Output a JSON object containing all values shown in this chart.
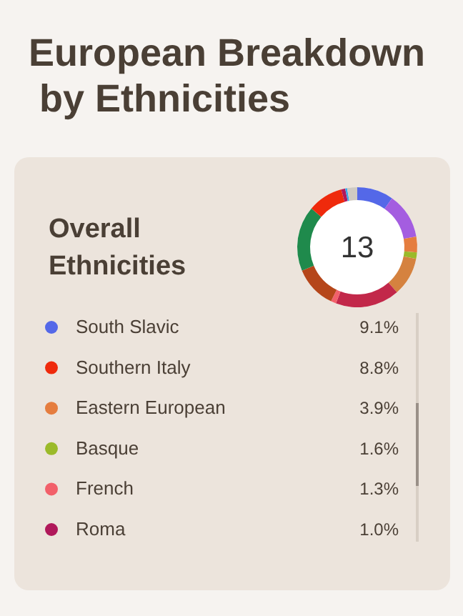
{
  "chart_data": {
    "type": "donut",
    "title": "European Breakdown by Ethnicities",
    "subtitle": "Overall Ethnicities",
    "annotations": [
      "13"
    ],
    "categories": [
      "South Slavic",
      null,
      "Eastern European",
      "Basque",
      null,
      null,
      "French",
      null,
      null,
      "Southern Italy",
      "Roma",
      null,
      null
    ],
    "values": [
      9.1,
      11.4,
      3.9,
      1.6,
      9.6,
      16,
      1.3,
      10.6,
      16.2,
      8.8,
      1.0,
      0.5,
      2.5
    ],
    "value_labels": [
      "9.1%",
      null,
      "3.9%",
      "1.6%",
      null,
      null,
      "1.3%",
      null,
      null,
      "8.8%",
      "1.0%",
      null,
      null
    ],
    "colors": [
      "#5468e8",
      "#a45de0",
      "#e57d3f",
      "#9bba2a",
      "#d5823f",
      "#c2284a",
      "#f2606a",
      "#b5461a",
      "#1f8a4c",
      "#ef2a0c",
      "#b0185a",
      "#3aa8e8",
      "#cfcac2"
    ],
    "legend": "bottom"
  }
}
